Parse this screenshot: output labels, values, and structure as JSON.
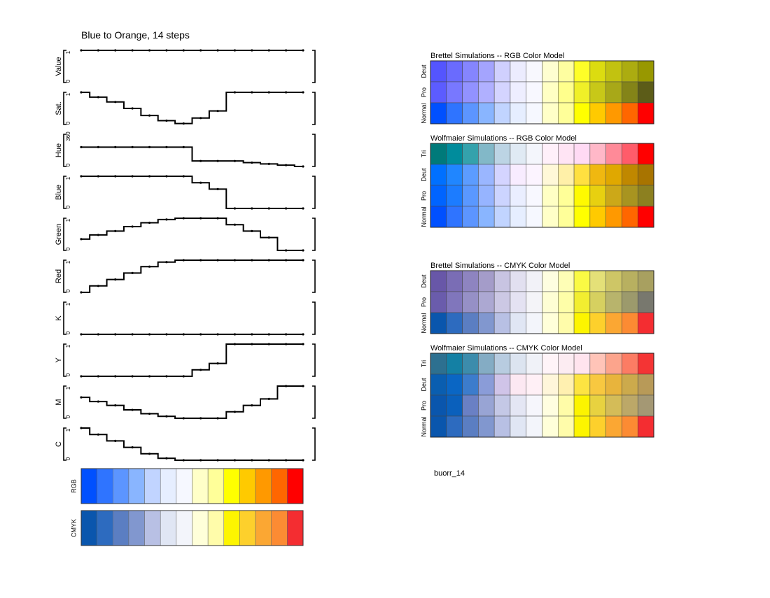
{
  "figure_id": "buorr_14",
  "chart_data": [
    {
      "type": "step-line",
      "title": "Blue to Orange, 14 steps",
      "steps": 14,
      "panels": [
        {
          "name": "Value",
          "label": "Value",
          "tick_labels": [
            "1",
            "0"
          ],
          "values": [
            1,
            1,
            1,
            1,
            1,
            1,
            1,
            1,
            1,
            1,
            1,
            1,
            1,
            1
          ]
        },
        {
          "name": "Sat",
          "label": "Sat.",
          "tick_labels": [
            "1",
            "0"
          ],
          "values": [
            1,
            0.85,
            0.7,
            0.5,
            0.28,
            0.12,
            0.03,
            0.2,
            0.42,
            1,
            1,
            1,
            1,
            1
          ]
        },
        {
          "name": "Hue",
          "label": "Hue",
          "tick_labels": [
            "360",
            "0"
          ],
          "values": [
            0.6,
            0.6,
            0.6,
            0.6,
            0.6,
            0.6,
            0.6,
            0.17,
            0.17,
            0.17,
            0.12,
            0.08,
            0.04,
            0
          ]
        },
        {
          "name": "Blue",
          "label": "Blue",
          "tick_labels": [
            "1",
            "0"
          ],
          "values": [
            1,
            1,
            1,
            1,
            1,
            1,
            1,
            0.8,
            0.6,
            0,
            0,
            0,
            0,
            0
          ]
        },
        {
          "name": "Green",
          "label": "Green",
          "tick_labels": [
            "1",
            "0"
          ],
          "values": [
            0.35,
            0.48,
            0.6,
            0.74,
            0.86,
            0.96,
            1,
            1,
            1,
            0.8,
            0.6,
            0.4,
            0,
            0
          ]
        },
        {
          "name": "Red",
          "label": "Red",
          "tick_labels": [
            "1",
            "0"
          ],
          "values": [
            0,
            0.2,
            0.4,
            0.6,
            0.8,
            0.94,
            1,
            1,
            1,
            1,
            1,
            1,
            1,
            1
          ]
        },
        {
          "name": "K",
          "label": "K",
          "tick_labels": [
            "1",
            "0"
          ],
          "values": [
            0,
            0,
            0,
            0,
            0,
            0,
            0,
            0,
            0,
            0,
            0,
            0,
            0,
            0
          ]
        },
        {
          "name": "Y",
          "label": "Y",
          "tick_labels": [
            "1",
            "0"
          ],
          "values": [
            0,
            0,
            0,
            0,
            0,
            0,
            0,
            0.2,
            0.4,
            1,
            1,
            1,
            1,
            1
          ]
        },
        {
          "name": "M",
          "label": "M",
          "tick_labels": [
            "1",
            "0"
          ],
          "values": [
            0.65,
            0.52,
            0.4,
            0.26,
            0.14,
            0.06,
            0,
            0,
            0,
            0.2,
            0.4,
            0.6,
            1,
            1
          ]
        },
        {
          "name": "C",
          "label": "C",
          "tick_labels": [
            "1",
            "0"
          ],
          "values": [
            1,
            0.8,
            0.6,
            0.4,
            0.2,
            0.06,
            0,
            0,
            0,
            0,
            0,
            0,
            0,
            0
          ]
        }
      ]
    },
    {
      "type": "swatches",
      "rows": [
        {
          "label": "RGB",
          "colors": [
            "#0050ff",
            "#2f74ff",
            "#5c95ff",
            "#89b5ff",
            "#c1d4ff",
            "#e6eeff",
            "#f6f8ff",
            "#ffffc8",
            "#ffff99",
            "#ffff00",
            "#ffca00",
            "#ff9900",
            "#ff6600",
            "#ff0000"
          ]
        },
        {
          "label": "CMYK",
          "colors": [
            "#0a56ad",
            "#2d6bbf",
            "#5b7ec2",
            "#8197cf",
            "#b8c0e4",
            "#e0e6f4",
            "#f3f5fb",
            "#ffffd9",
            "#fffcaa",
            "#fdf500",
            "#fdd02c",
            "#fba733",
            "#fc8b33",
            "#f42d31"
          ]
        }
      ]
    },
    {
      "type": "swatch-grid",
      "title": "Brettel Simulations -- RGB Color Model",
      "rows": [
        {
          "label": "Deut",
          "colors": [
            "#5455fe",
            "#6a6bfe",
            "#8585fe",
            "#a4a4fe",
            "#d0d0fe",
            "#ececfe",
            "#f8f8fe",
            "#fefed0",
            "#fefea0",
            "#fefe28",
            "#dcdc10",
            "#c2c210",
            "#acac10",
            "#989800"
          ]
        },
        {
          "label": "Pro",
          "colors": [
            "#5c5cff",
            "#7878ff",
            "#9292ff",
            "#b0b0ff",
            "#d4d4ff",
            "#eeeeff",
            "#f8f8ff",
            "#ffffc4",
            "#ffff8c",
            "#f0f028",
            "#c8c818",
            "#a8a818",
            "#848418",
            "#5c5c18"
          ]
        },
        {
          "label": "Normal",
          "colors": [
            "#0050ff",
            "#2f74ff",
            "#5c95ff",
            "#89b5ff",
            "#c1d4ff",
            "#e6eeff",
            "#f6f8ff",
            "#ffffc8",
            "#ffff99",
            "#ffff00",
            "#ffca00",
            "#ff9900",
            "#ff6600",
            "#ff0000"
          ]
        }
      ]
    },
    {
      "type": "swatch-grid",
      "title": "Wolfmaier Simulations -- RGB Color Model",
      "rows": [
        {
          "label": "Tri",
          "colors": [
            "#007a7a",
            "#008c9c",
            "#34a2ac",
            "#82b8c8",
            "#bcd4e4",
            "#e0eaf4",
            "#f4f6fc",
            "#fff0fa",
            "#ffe4f4",
            "#ffdaf4",
            "#ffb8c8",
            "#ff8a98",
            "#ff5c6a",
            "#ff0000"
          ]
        },
        {
          "label": "Deut",
          "colors": [
            "#0070ff",
            "#2086ff",
            "#5c9cff",
            "#9ab6ff",
            "#d4d4ff",
            "#f8ecff",
            "#fcf4ff",
            "#fff8d8",
            "#fff0a8",
            "#ffe040",
            "#f0b810",
            "#e0a800",
            "#c08800",
            "#a87400"
          ]
        },
        {
          "label": "Pro",
          "colors": [
            "#0064ff",
            "#1c7cff",
            "#5a98ff",
            "#96b4ff",
            "#ccd4ff",
            "#eaeeff",
            "#f8f8ff",
            "#ffffc4",
            "#ffff98",
            "#fffa00",
            "#e8d010",
            "#cca818",
            "#a89420",
            "#8c8020"
          ]
        },
        {
          "label": "Normal",
          "colors": [
            "#0050ff",
            "#2f74ff",
            "#5c95ff",
            "#89b5ff",
            "#c1d4ff",
            "#e6eeff",
            "#f6f8ff",
            "#ffffc8",
            "#ffff99",
            "#ffff00",
            "#ffca00",
            "#ff9900",
            "#ff6600",
            "#ff0000"
          ]
        }
      ]
    },
    {
      "type": "swatch-grid",
      "title": "Brettel Simulations -- CMYK Color Model",
      "rows": [
        {
          "label": "Deut",
          "colors": [
            "#6857a8",
            "#7a6db5",
            "#8e84c0",
            "#a49cc9",
            "#c8c4e2",
            "#e2e0f0",
            "#f2f2f8",
            "#fefee0",
            "#fefeb6",
            "#fafa44",
            "#e4e078",
            "#cec666",
            "#b8b060",
            "#a8a060"
          ]
        },
        {
          "label": "Pro",
          "colors": [
            "#6a5cac",
            "#8076bc",
            "#9690c6",
            "#aca8d2",
            "#ccc8e4",
            "#e4e2f2",
            "#f4f4f8",
            "#fefed4",
            "#fefea8",
            "#f2ee30",
            "#d6d060",
            "#b8b46c",
            "#9c9a6c",
            "#78786e"
          ]
        },
        {
          "label": "Normal",
          "colors": [
            "#0a56ad",
            "#2d6bbf",
            "#5b7ec2",
            "#8197cf",
            "#b8c0e4",
            "#e0e6f4",
            "#f3f5fb",
            "#ffffd9",
            "#fffcaa",
            "#fdf500",
            "#fdd02c",
            "#fba733",
            "#fc8b33",
            "#f42d31"
          ]
        }
      ]
    },
    {
      "type": "swatch-grid",
      "title": "Wolfmaier Simulations -- CMYK Color Model",
      "rows": [
        {
          "label": "Tri",
          "colors": [
            "#2d7090",
            "#1480a4",
            "#3c8cac",
            "#84acc4",
            "#b8cce0",
            "#dce4f0",
            "#f0f2f8",
            "#fff4f8",
            "#fcecf2",
            "#ffe4ee",
            "#ffc4b8",
            "#fca48c",
            "#fc7c64",
            "#f43434"
          ]
        },
        {
          "label": "Deut",
          "colors": [
            "#0a5eb0",
            "#0a66c4",
            "#3c7ccc",
            "#8a9cd8",
            "#d0c4e8",
            "#fce8f2",
            "#fff0f6",
            "#fff6da",
            "#fff0b0",
            "#fde442",
            "#f8c840",
            "#e8b43c",
            "#ccaa4c",
            "#b89a58"
          ]
        },
        {
          "label": "Pro",
          "colors": [
            "#0a56ad",
            "#0a60bc",
            "#6a80c4",
            "#98a4d4",
            "#c4c8e6",
            "#e4e6f4",
            "#f6f6fc",
            "#fffee0",
            "#fffca8",
            "#fcf400",
            "#e8d240",
            "#d4bc58",
            "#bca868",
            "#a49874"
          ]
        },
        {
          "label": "Normal",
          "colors": [
            "#0a56ad",
            "#2d6bbf",
            "#5b7ec2",
            "#8197cf",
            "#b8c0e4",
            "#e0e6f4",
            "#f3f5fb",
            "#ffffd9",
            "#fffcaa",
            "#fdf500",
            "#fdd02c",
            "#fba733",
            "#fc8b33",
            "#f42d31"
          ]
        }
      ]
    }
  ]
}
